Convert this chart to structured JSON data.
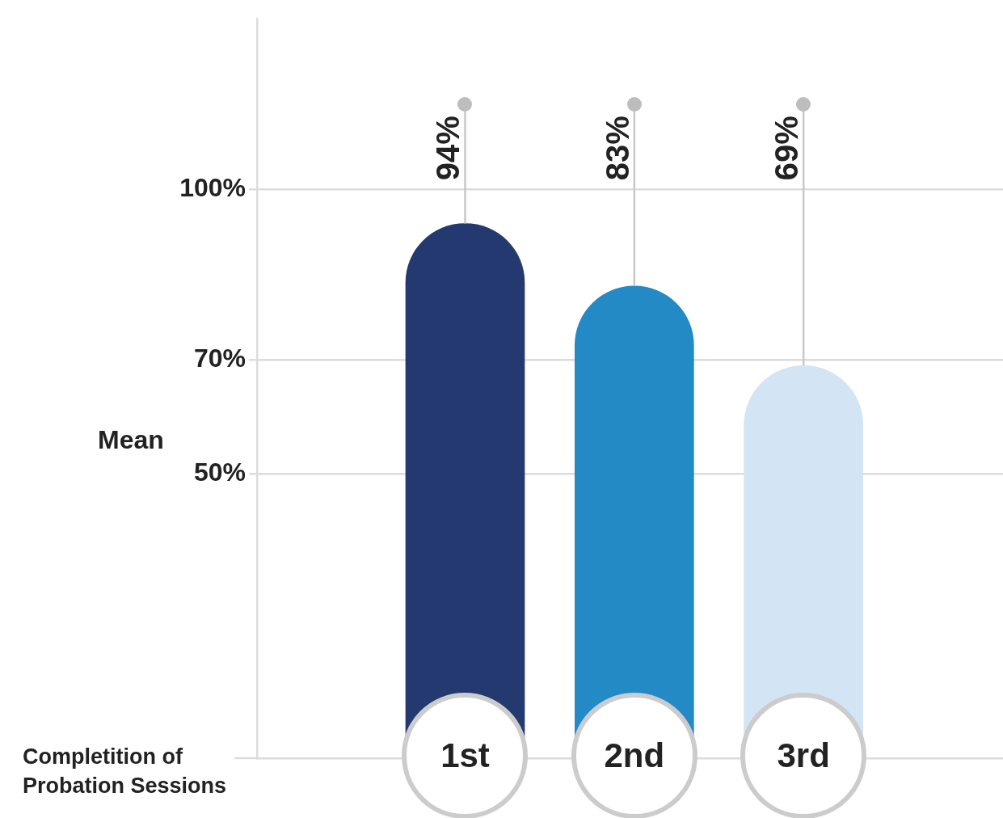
{
  "chart_data": {
    "type": "bar",
    "xlabel": "Completition of Probation Sessions",
    "ylabel": "Mean",
    "categories": [
      "1st",
      "2nd",
      "3rd"
    ],
    "values": [
      94,
      83,
      69
    ],
    "colors": [
      "#23396f",
      "#238ac6",
      "#d3e4f5"
    ],
    "value_labels": [
      "94%",
      "83%",
      "69%"
    ],
    "ylim": [
      0,
      130
    ],
    "yticks": [
      {
        "value": 50,
        "label": "50%"
      },
      {
        "value": 70,
        "label": "70%"
      },
      {
        "value": 100,
        "label": "100%"
      }
    ],
    "grid": "y"
  }
}
